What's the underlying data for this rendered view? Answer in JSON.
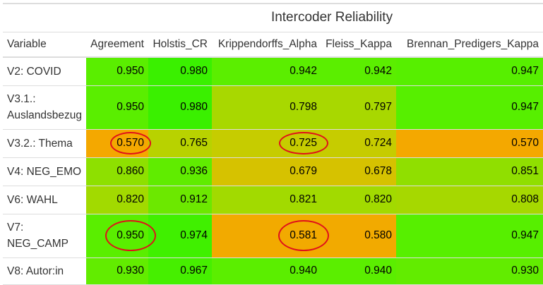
{
  "table": {
    "spanner": "Intercoder Reliability",
    "columns": [
      "Variable",
      "Agreement",
      "Holstis_CR",
      "Krippendorffs_Alpha",
      "Fleiss_Kappa",
      "Brennan_Predigers_Kappa"
    ],
    "rows": [
      {
        "variable": [
          "V2: COVID"
        ],
        "values": [
          "0.950",
          "0.980",
          "0.942",
          "0.942",
          "0.947"
        ],
        "colors": [
          "#5aee00",
          "#3af000",
          "#5bee00",
          "#5bee00",
          "#57ef00"
        ]
      },
      {
        "variable": [
          "V3.1.:",
          "Auslandsbezug"
        ],
        "values": [
          "0.950",
          "0.980",
          "0.798",
          "0.797",
          "0.947"
        ],
        "colors": [
          "#5aee00",
          "#3af000",
          "#a8d800",
          "#a8d800",
          "#57ef00"
        ]
      },
      {
        "variable": [
          "V3.2.: Thema"
        ],
        "values": [
          "0.570",
          "0.765",
          "0.725",
          "0.724",
          "0.570"
        ],
        "colors": [
          "#f4a800",
          "#b8d200",
          "#c6cc00",
          "#c6cc00",
          "#f4a800"
        ]
      },
      {
        "variable": [
          "V4: NEG_EMO"
        ],
        "values": [
          "0.860",
          "0.936",
          "0.679",
          "0.678",
          "0.851"
        ],
        "colors": [
          "#8ee000",
          "#60ec00",
          "#d6c200",
          "#d6c200",
          "#90df00"
        ]
      },
      {
        "variable": [
          "V6: WAHL"
        ],
        "values": [
          "0.820",
          "0.912",
          "0.821",
          "0.820",
          "0.808"
        ],
        "colors": [
          "#a2da00",
          "#6ce800",
          "#a2da00",
          "#a2da00",
          "#a6d800"
        ]
      },
      {
        "variable": [
          "V7:",
          "NEG_CAMP"
        ],
        "values": [
          "0.950",
          "0.974",
          "0.581",
          "0.580",
          "0.947"
        ],
        "colors": [
          "#5aee00",
          "#40f000",
          "#f2aa00",
          "#f2aa00",
          "#57ef00"
        ]
      },
      {
        "variable": [
          "V8: Autor:in"
        ],
        "values": [
          "0.930",
          "0.967",
          "0.940",
          "0.940",
          "0.930"
        ],
        "colors": [
          "#62ec00",
          "#46ef00",
          "#5bee00",
          "#5bee00",
          "#62ec00"
        ]
      }
    ]
  }
}
